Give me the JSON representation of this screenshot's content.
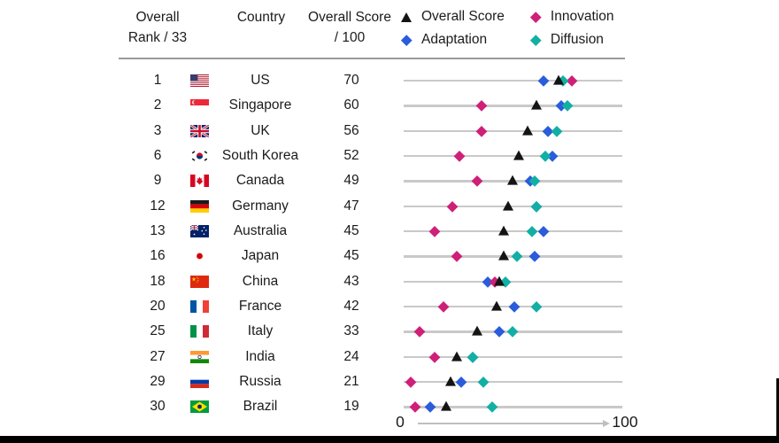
{
  "header": {
    "rank_line1": "Overall",
    "rank_line2": "Rank / 33",
    "country": "Country",
    "score_line1": "Overall Score",
    "score_line2": "/ 100"
  },
  "axis": {
    "min_label": "0",
    "max_label": "100"
  },
  "colors": {
    "overall_score": "#141414",
    "adaptation": "#2A5CDB",
    "innovation": "#CE2079",
    "diffusion": "#12AFA4",
    "track": "#C9C9C9",
    "divider": "#9A9A9A",
    "axis_arrow": "#BFBFBF",
    "bottom_border": "#000000"
  },
  "chart_data": {
    "type": "scatter",
    "subtype": "dot-plot",
    "title": "",
    "xlim": [
      0,
      100
    ],
    "xlabels": [
      "0",
      "100"
    ],
    "legend_position": "top-right",
    "series": [
      {
        "key": "overall_score",
        "name": "Overall Score",
        "marker": "triangle",
        "color": "#141414",
        "z": 5
      },
      {
        "key": "adaptation",
        "name": "Adaptation",
        "marker": "diamond",
        "color": "#2A5CDB",
        "z": 2
      },
      {
        "key": "innovation",
        "name": "Innovation",
        "marker": "diamond",
        "color": "#CE2079",
        "z": 3
      },
      {
        "key": "diffusion",
        "name": "Diffusion",
        "marker": "diamond",
        "color": "#12AFA4",
        "z": 4
      }
    ],
    "rows": [
      {
        "rank": "1",
        "country": "US",
        "flag": "us",
        "overall_score": 70,
        "adaptation": 63,
        "innovation": 76,
        "diffusion": 72
      },
      {
        "rank": "2",
        "country": "Singapore",
        "flag": "sg",
        "overall_score": 60,
        "adaptation": 71,
        "innovation": 35,
        "diffusion": 74
      },
      {
        "rank": "3",
        "country": "UK",
        "flag": "uk",
        "overall_score": 56,
        "adaptation": 65,
        "innovation": 35,
        "diffusion": 69
      },
      {
        "rank": "6",
        "country": "South Korea",
        "flag": "kr",
        "overall_score": 52,
        "adaptation": 67,
        "innovation": 25,
        "diffusion": 64
      },
      {
        "rank": "9",
        "country": "Canada",
        "flag": "ca",
        "overall_score": 49,
        "adaptation": 57,
        "innovation": 33,
        "diffusion": 59
      },
      {
        "rank": "12",
        "country": "Germany",
        "flag": "de",
        "overall_score": 47,
        "adaptation": 60,
        "innovation": 22,
        "diffusion": 60
      },
      {
        "rank": "13",
        "country": "Australia",
        "flag": "au",
        "overall_score": 45,
        "adaptation": 63,
        "innovation": 14,
        "diffusion": 58
      },
      {
        "rank": "16",
        "country": "Japan",
        "flag": "jp",
        "overall_score": 45,
        "adaptation": 59,
        "innovation": 24,
        "diffusion": 51
      },
      {
        "rank": "18",
        "country": "China",
        "flag": "cn",
        "overall_score": 43,
        "adaptation": 38,
        "innovation": 41,
        "diffusion": 46
      },
      {
        "rank": "20",
        "country": "France",
        "flag": "fr",
        "overall_score": 42,
        "adaptation": 50,
        "innovation": 18,
        "diffusion": 60
      },
      {
        "rank": "25",
        "country": "Italy",
        "flag": "it",
        "overall_score": 33,
        "adaptation": 43,
        "innovation": 7,
        "diffusion": 49
      },
      {
        "rank": "27",
        "country": "India",
        "flag": "in",
        "overall_score": 24,
        "adaptation": 31,
        "innovation": 14,
        "diffusion": 31
      },
      {
        "rank": "29",
        "country": "Russia",
        "flag": "ru",
        "overall_score": 21,
        "adaptation": 26,
        "innovation": 3,
        "diffusion": 36
      },
      {
        "rank": "30",
        "country": "Brazil",
        "flag": "br",
        "overall_score": 19,
        "adaptation": 12,
        "innovation": 5,
        "diffusion": 40
      }
    ]
  }
}
